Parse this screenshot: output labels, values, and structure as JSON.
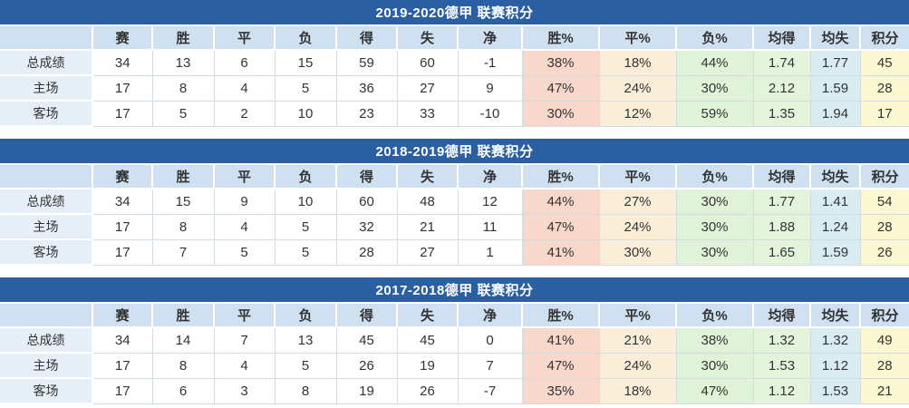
{
  "colors": {
    "title_bar": "#2b5fa2",
    "header_bg": "#cfe0f1",
    "label_bg": "#e6eef7",
    "grid_line": "#d3dbe3",
    "text": "#333333",
    "win_pct_bg": "#f8d8cb",
    "draw_pct_bg": "#faeed9",
    "loss_pct_bg": "#e0f2d7",
    "avg_for_bg": "#e4f4dc",
    "avg_against_bg": "#d9ecf2",
    "points_bg": "#fbf8d1"
  },
  "chart_data": {
    "type": "table",
    "shared_columns": [
      "",
      "赛",
      "胜",
      "平",
      "负",
      "得",
      "失",
      "净",
      "胜%",
      "平%",
      "负%",
      "均得",
      "均失",
      "积分"
    ],
    "tables": [
      {
        "title": "2019-2020德甲 联赛积分",
        "rows": [
          {
            "label": "总成绩",
            "values": [
              "34",
              "13",
              "6",
              "15",
              "59",
              "60",
              "-1",
              "38%",
              "18%",
              "44%",
              "1.74",
              "1.77",
              "45"
            ]
          },
          {
            "label": "主场",
            "values": [
              "17",
              "8",
              "4",
              "5",
              "36",
              "27",
              "9",
              "47%",
              "24%",
              "30%",
              "2.12",
              "1.59",
              "28"
            ]
          },
          {
            "label": "客场",
            "values": [
              "17",
              "5",
              "2",
              "10",
              "23",
              "33",
              "-10",
              "30%",
              "12%",
              "59%",
              "1.35",
              "1.94",
              "17"
            ]
          }
        ]
      },
      {
        "title": "2018-2019德甲 联赛积分",
        "rows": [
          {
            "label": "总成绩",
            "values": [
              "34",
              "15",
              "9",
              "10",
              "60",
              "48",
              "12",
              "44%",
              "27%",
              "30%",
              "1.77",
              "1.41",
              "54"
            ]
          },
          {
            "label": "主场",
            "values": [
              "17",
              "8",
              "4",
              "5",
              "32",
              "21",
              "11",
              "47%",
              "24%",
              "30%",
              "1.88",
              "1.24",
              "28"
            ]
          },
          {
            "label": "客场",
            "values": [
              "17",
              "7",
              "5",
              "5",
              "28",
              "27",
              "1",
              "41%",
              "30%",
              "30%",
              "1.65",
              "1.59",
              "26"
            ]
          }
        ]
      },
      {
        "title": "2017-2018德甲 联赛积分",
        "rows": [
          {
            "label": "总成绩",
            "values": [
              "34",
              "14",
              "7",
              "13",
              "45",
              "45",
              "0",
              "41%",
              "21%",
              "38%",
              "1.32",
              "1.32",
              "49"
            ]
          },
          {
            "label": "主场",
            "values": [
              "17",
              "8",
              "4",
              "5",
              "26",
              "19",
              "7",
              "47%",
              "24%",
              "30%",
              "1.53",
              "1.12",
              "28"
            ]
          },
          {
            "label": "客场",
            "values": [
              "17",
              "6",
              "3",
              "8",
              "19",
              "26",
              "-7",
              "35%",
              "18%",
              "47%",
              "1.12",
              "1.53",
              "21"
            ]
          }
        ]
      }
    ]
  }
}
